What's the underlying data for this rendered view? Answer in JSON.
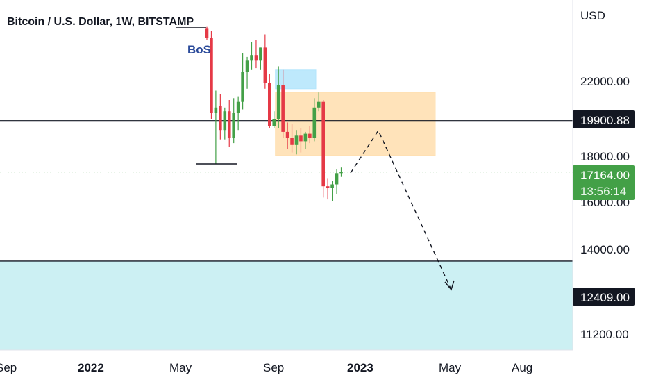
{
  "chart_data": {
    "type": "candlestick",
    "title": "Bitcoin / U.S. Dollar, 1W, BITSTAMP",
    "currency": "USD",
    "y_ticks": [
      "22000.00",
      "18000.00",
      "16000.00",
      "14000.00",
      "11200.00"
    ],
    "x_ticks": [
      "Sep",
      "2022",
      "May",
      "Sep",
      "2023",
      "May",
      "Aug"
    ],
    "y_range": [
      10600,
      24500
    ],
    "price_labels": {
      "resistance": "19900.88",
      "current_price": "17164.00",
      "countdown": "13:56:14",
      "support": "12409.00"
    },
    "annotations": {
      "bos": "BoS"
    },
    "levels": {
      "resistance": 19900.88,
      "support": 12409.0,
      "current": 17164.0
    },
    "zones": [
      {
        "name": "supply-zone",
        "from_week": 0,
        "to_week": 19,
        "low": 18050,
        "high": 21400,
        "color": "#ffe0b2"
      },
      {
        "name": "order-block",
        "from_week": 0,
        "to_week": 5,
        "low": 21600,
        "high": 22600,
        "color": "#b3e5fc"
      },
      {
        "name": "demand-zone",
        "from_week": -80,
        "to_week": 100,
        "low": 9000,
        "high": 12409,
        "color": "#c6eef2"
      }
    ],
    "colors": {
      "up": "#43a047",
      "down": "#e53946",
      "current": "#43a047"
    },
    "candles": [
      {
        "o": 24800,
        "h": 24900,
        "l": 24200,
        "c": 24300
      },
      {
        "o": 24300,
        "h": 24700,
        "l": 20000,
        "c": 20300
      },
      {
        "o": 20300,
        "h": 21500,
        "l": 17600,
        "c": 20600
      },
      {
        "o": 20700,
        "h": 21300,
        "l": 18900,
        "c": 19400
      },
      {
        "o": 19400,
        "h": 20600,
        "l": 18900,
        "c": 20400
      },
      {
        "o": 20400,
        "h": 21000,
        "l": 18500,
        "c": 19000
      },
      {
        "o": 19000,
        "h": 21100,
        "l": 18700,
        "c": 20300
      },
      {
        "o": 20300,
        "h": 21200,
        "l": 19400,
        "c": 20900
      },
      {
        "o": 20900,
        "h": 23500,
        "l": 20500,
        "c": 22500
      },
      {
        "o": 22500,
        "h": 23300,
        "l": 21600,
        "c": 23100
      },
      {
        "o": 23100,
        "h": 24100,
        "l": 22600,
        "c": 23400
      },
      {
        "o": 23400,
        "h": 24200,
        "l": 22700,
        "c": 23100
      },
      {
        "o": 23100,
        "h": 23800,
        "l": 22600,
        "c": 23800
      },
      {
        "o": 23800,
        "h": 24500,
        "l": 21600,
        "c": 21900
      },
      {
        "o": 21900,
        "h": 22400,
        "l": 19500,
        "c": 19600
      },
      {
        "o": 19600,
        "h": 20400,
        "l": 19500,
        "c": 20000
      },
      {
        "o": 20000,
        "h": 22800,
        "l": 19500,
        "c": 21800
      },
      {
        "o": 21800,
        "h": 22600,
        "l": 19000,
        "c": 19300
      },
      {
        "o": 19300,
        "h": 19800,
        "l": 18400,
        "c": 19000
      },
      {
        "o": 19000,
        "h": 19700,
        "l": 18200,
        "c": 18600
      },
      {
        "o": 18600,
        "h": 19400,
        "l": 18100,
        "c": 19100
      },
      {
        "o": 19100,
        "h": 19500,
        "l": 18200,
        "c": 18800
      },
      {
        "o": 18800,
        "h": 19300,
        "l": 18400,
        "c": 19200
      },
      {
        "o": 19200,
        "h": 19600,
        "l": 18700,
        "c": 19000
      },
      {
        "o": 19000,
        "h": 21100,
        "l": 18800,
        "c": 20600
      },
      {
        "o": 20600,
        "h": 21400,
        "l": 20400,
        "c": 20900
      },
      {
        "o": 20900,
        "h": 21000,
        "l": 15800,
        "c": 16400
      },
      {
        "o": 16400,
        "h": 16800,
        "l": 15700,
        "c": 16300
      },
      {
        "o": 16300,
        "h": 16700,
        "l": 15600,
        "c": 16500
      },
      {
        "o": 16500,
        "h": 17300,
        "l": 16000,
        "c": 17100
      },
      {
        "o": 17100,
        "h": 17400,
        "l": 16900,
        "c": 17164
      }
    ],
    "projection": [
      {
        "week": 30.5,
        "price": 17164
      },
      {
        "week": 43,
        "price": 18900
      },
      {
        "week": 64,
        "price": 12500
      }
    ]
  }
}
